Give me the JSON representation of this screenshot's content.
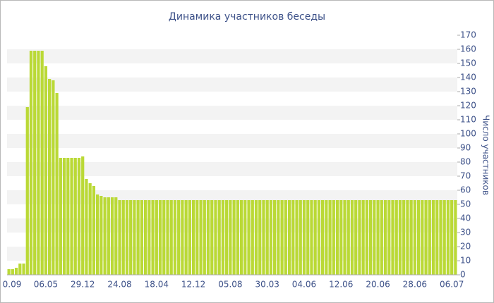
{
  "chart_data": {
    "type": "bar",
    "title": "Динамика участников беседы",
    "y_label": "Число участников",
    "categories": [
      "0.09",
      null,
      null,
      null,
      null,
      null,
      null,
      null,
      null,
      null,
      "06.05",
      null,
      null,
      null,
      null,
      null,
      null,
      null,
      null,
      null,
      "29.12",
      null,
      null,
      null,
      null,
      null,
      null,
      null,
      null,
      null,
      "24.08",
      null,
      null,
      null,
      null,
      null,
      null,
      null,
      null,
      null,
      "18.04",
      null,
      null,
      null,
      null,
      null,
      null,
      null,
      null,
      null,
      "12.12",
      null,
      null,
      null,
      null,
      null,
      null,
      null,
      null,
      null,
      "05.08",
      null,
      null,
      null,
      null,
      null,
      null,
      null,
      null,
      null,
      "30.03",
      null,
      null,
      null,
      null,
      null,
      null,
      null,
      null,
      null,
      "04.06",
      null,
      null,
      null,
      null,
      null,
      null,
      null,
      null,
      null,
      "12.06",
      null,
      null,
      null,
      null,
      null,
      null,
      null,
      null,
      null,
      "20.06",
      null,
      null,
      null,
      null,
      null,
      null,
      null,
      null,
      null,
      "28.06",
      null,
      null,
      null,
      null,
      null,
      null,
      null,
      null,
      null,
      "06.07",
      null
    ],
    "values": [
      4,
      4,
      5,
      8,
      8,
      119,
      159,
      159,
      159,
      159,
      148,
      139,
      138,
      129,
      83,
      83,
      83,
      83,
      83,
      83,
      84,
      68,
      65,
      63,
      57,
      56,
      55,
      55,
      55,
      55,
      53,
      53,
      53,
      53,
      53,
      53,
      53,
      53,
      53,
      53,
      53,
      53,
      53,
      53,
      53,
      53,
      53,
      53,
      53,
      53,
      53,
      53,
      53,
      53,
      53,
      53,
      53,
      53,
      53,
      53,
      53,
      53,
      53,
      53,
      53,
      53,
      53,
      53,
      53,
      53,
      53,
      53,
      53,
      53,
      53,
      53,
      53,
      53,
      53,
      53,
      53,
      53,
      53,
      53,
      53,
      53,
      53,
      53,
      53,
      53,
      53,
      53,
      53,
      53,
      53,
      53,
      53,
      53,
      53,
      53,
      53,
      53,
      53,
      53,
      53,
      53,
      53,
      53,
      53,
      53,
      53,
      53,
      53,
      53,
      53,
      53,
      53,
      53,
      53,
      53,
      53,
      53
    ],
    "color": "#bad936",
    "ylim": [
      0,
      170
    ],
    "yticks": [
      0,
      10,
      20,
      30,
      40,
      50,
      60,
      70,
      80,
      90,
      100,
      110,
      120,
      130,
      140,
      150,
      160,
      170
    ],
    "grid": true
  }
}
